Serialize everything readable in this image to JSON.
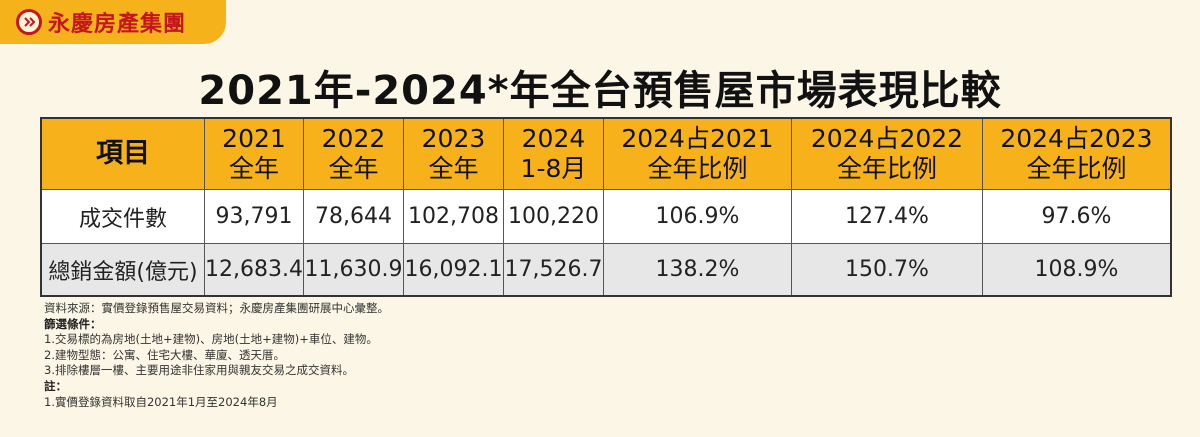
{
  "brand": {
    "name": "永慶房產集團"
  },
  "title": "2021年-2024*年全台預售屋市場表現比較",
  "table": {
    "headers": [
      {
        "line1": "項目",
        "line2": ""
      },
      {
        "line1": "2021",
        "line2": "全年"
      },
      {
        "line1": "2022",
        "line2": "全年"
      },
      {
        "line1": "2023",
        "line2": "全年"
      },
      {
        "line1": "2024",
        "line2": "1-8月"
      },
      {
        "line1": "2024占2021",
        "line2": "全年比例"
      },
      {
        "line1": "2024占2022",
        "line2": "全年比例"
      },
      {
        "line1": "2024占2023",
        "line2": "全年比例"
      }
    ],
    "rows": [
      {
        "label": "成交件數",
        "cells": [
          "93,791",
          "78,644",
          "102,708",
          "100,220",
          "106.9%",
          "127.4%",
          "97.6%"
        ]
      },
      {
        "label": "總銷金額(億元)",
        "cells": [
          "12,683.4",
          "11,630.9",
          "16,092.1",
          "17,526.7",
          "138.2%",
          "150.7%",
          "108.9%"
        ]
      }
    ]
  },
  "notes": {
    "source": "資料來源：實價登錄預售屋交易資料；永慶房產集團研展中心彙整。",
    "filter_title": "篩選條件：",
    "filter_items": [
      "1.交易標的為房地(土地+建物)、房地(土地+建物)+車位、建物。",
      "2.建物型態：公寓、住宅大樓、華廈、透天厝。",
      "3.排除樓層一樓、主要用途非住家用與親友交易之成交資料。"
    ],
    "note_title": "註：",
    "note_items": [
      "1.實價登錄資料取自2021年1月至2024年8月"
    ]
  },
  "colors": {
    "header_bg": "#f7b21b",
    "brand_red": "#c4161c",
    "page_bg": "#fbf6e6"
  }
}
